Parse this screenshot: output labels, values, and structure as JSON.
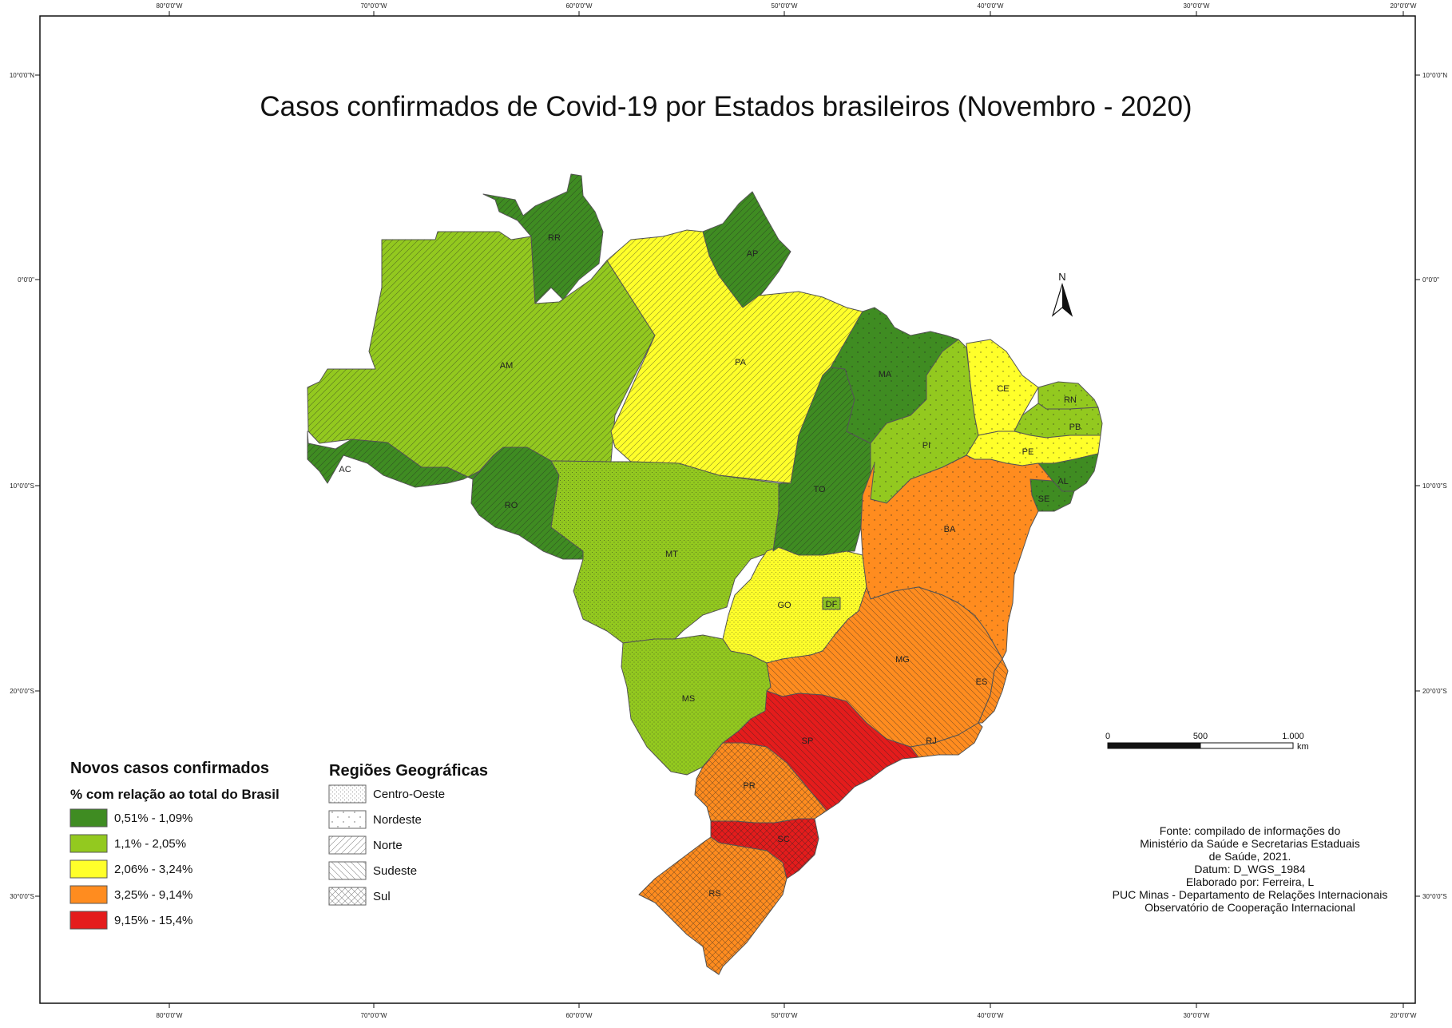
{
  "title": "Casos confirmados de Covid-19 por Estados brasileiros (Novembro - 2020)",
  "colors": {
    "c1": "#3f8c22",
    "c2": "#93c91f",
    "c3": "#ffff2a",
    "c4": "#ff8c1f",
    "c5": "#e41c1c"
  },
  "graticule": {
    "top": [
      "80°0'0\"W",
      "70°0'0\"W",
      "60°0'0\"W",
      "50°0'0\"W",
      "40°0'0\"W",
      "30°0'0\"W",
      "20°0'0\"W"
    ],
    "bottom": [
      "80°0'0\"W",
      "70°0'0\"W",
      "60°0'0\"W",
      "50°0'0\"W",
      "40°0'0\"W",
      "30°0'0\"W",
      "20°0'0\"W"
    ],
    "left": [
      "10°0'0\"N",
      "0°0'0\"",
      "10°0'0\"S",
      "20°0'0\"S",
      "30°0'0\"S"
    ],
    "right": [
      "10°0'0\"N",
      "0°0'0\"",
      "10°0'0\"S",
      "20°0'0\"S",
      "30°0'0\"S"
    ]
  },
  "states": [
    {
      "abbr": "RR",
      "class": 1,
      "region": "Norte"
    },
    {
      "abbr": "AP",
      "class": 1,
      "region": "Norte"
    },
    {
      "abbr": "AM",
      "class": 2,
      "region": "Norte"
    },
    {
      "abbr": "PA",
      "class": 3,
      "region": "Norte"
    },
    {
      "abbr": "AC",
      "class": 1,
      "region": "Norte"
    },
    {
      "abbr": "RO",
      "class": 1,
      "region": "Norte"
    },
    {
      "abbr": "TO",
      "class": 1,
      "region": "Norte"
    },
    {
      "abbr": "MA",
      "class": 1,
      "region": "Nordeste"
    },
    {
      "abbr": "PI",
      "class": 2,
      "region": "Nordeste"
    },
    {
      "abbr": "CE",
      "class": 3,
      "region": "Nordeste"
    },
    {
      "abbr": "RN",
      "class": 2,
      "region": "Nordeste"
    },
    {
      "abbr": "PB",
      "class": 2,
      "region": "Nordeste"
    },
    {
      "abbr": "PE",
      "class": 3,
      "region": "Nordeste"
    },
    {
      "abbr": "AL",
      "class": 1,
      "region": "Nordeste"
    },
    {
      "abbr": "SE",
      "class": 1,
      "region": "Nordeste"
    },
    {
      "abbr": "BA",
      "class": 4,
      "region": "Nordeste"
    },
    {
      "abbr": "MT",
      "class": 2,
      "region": "Centro-Oeste"
    },
    {
      "abbr": "GO",
      "class": 3,
      "region": "Centro-Oeste"
    },
    {
      "abbr": "DF",
      "class": 2,
      "region": "Centro-Oeste"
    },
    {
      "abbr": "MS",
      "class": 2,
      "region": "Centro-Oeste"
    },
    {
      "abbr": "MG",
      "class": 4,
      "region": "Sudeste"
    },
    {
      "abbr": "ES",
      "class": 4,
      "region": "Sudeste"
    },
    {
      "abbr": "RJ",
      "class": 4,
      "region": "Sudeste"
    },
    {
      "abbr": "SP",
      "class": 5,
      "region": "Sudeste"
    },
    {
      "abbr": "PR",
      "class": 4,
      "region": "Sul"
    },
    {
      "abbr": "SC",
      "class": 5,
      "region": "Sul"
    },
    {
      "abbr": "RS",
      "class": 4,
      "region": "Sul"
    }
  ],
  "legend_cases": {
    "title": "Novos casos confirmados",
    "subtitle": "% com relação ao total do Brasil",
    "items": [
      {
        "label": "0,51% - 1,09%",
        "color": "#3f8c22"
      },
      {
        "label": "1,1% - 2,05%",
        "color": "#93c91f"
      },
      {
        "label": "2,06% - 3,24%",
        "color": "#ffff2a"
      },
      {
        "label": "3,25% - 9,14%",
        "color": "#ff8c1f"
      },
      {
        "label": "9,15% - 15,4%",
        "color": "#e41c1c"
      }
    ]
  },
  "legend_regions": {
    "title": "Regiões Geográficas",
    "items": [
      "Centro-Oeste",
      "Nordeste",
      "Norte",
      "Sudeste",
      "Sul"
    ]
  },
  "north": "N",
  "scale": {
    "ticks": [
      "0",
      "500",
      "1.000"
    ],
    "unit": "km"
  },
  "source": [
    "Fonte: compilado de informações do",
    "Ministério da Saúde e Secretarias Estaduais",
    "de Saúde, 2021.",
    "Datum: D_WGS_1984",
    "Elaborado por: Ferreira, L",
    "PUC Minas - Departamento de Relações Internacionais",
    "Observatório de Cooperação Internacional"
  ]
}
